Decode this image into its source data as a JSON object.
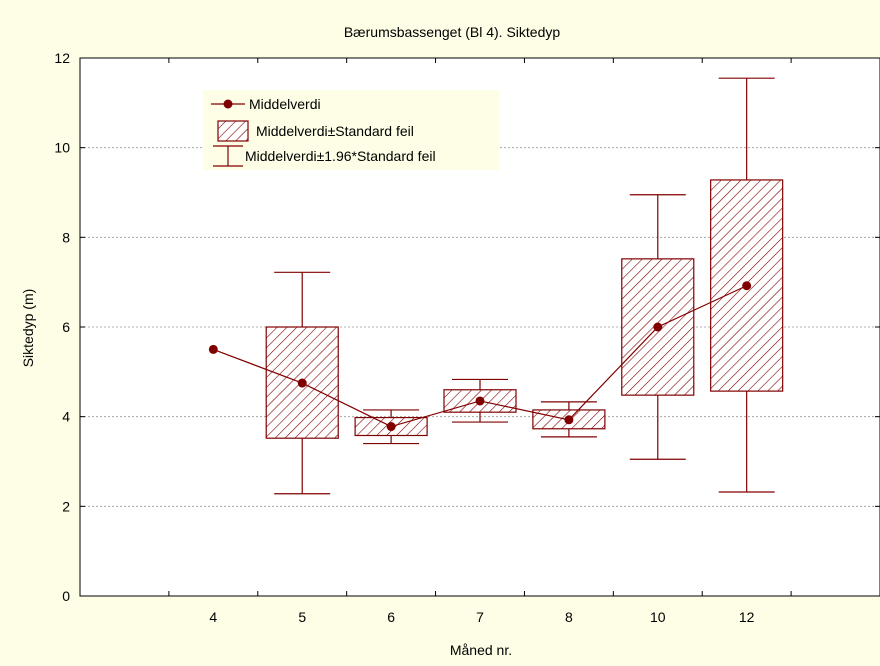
{
  "chart_data": {
    "type": "box",
    "title": "Bærumsbassenget (Bl 4). Siktedyp",
    "xlabel": "Måned nr.",
    "ylabel": "Siktedyp (m)",
    "ylim": [
      0,
      12
    ],
    "yticks": [
      0,
      2,
      4,
      6,
      8,
      10,
      12
    ],
    "grid": true,
    "legend_position": "top-left",
    "categories": [
      "4",
      "5",
      "6",
      "7",
      "8",
      "10",
      "12"
    ],
    "series": [
      {
        "name": "Middelverdi",
        "values": [
          5.5,
          4.75,
          3.78,
          4.35,
          3.93,
          6.0,
          6.92
        ]
      },
      {
        "name": "Middelverdi±Standard feil",
        "low": [
          null,
          3.52,
          3.58,
          4.1,
          3.73,
          4.48,
          4.57
        ],
        "high": [
          null,
          6.0,
          3.98,
          4.6,
          4.15,
          7.52,
          9.28
        ]
      },
      {
        "name": "Middelverdi±1.96*Standard feil",
        "low": [
          null,
          2.28,
          3.4,
          3.88,
          3.55,
          3.05,
          2.32
        ],
        "high": [
          null,
          7.22,
          4.15,
          4.83,
          4.33,
          8.95,
          11.55
        ]
      }
    ],
    "colors": {
      "series": "#800000",
      "background": "#fefee6",
      "plot_bg": "#ffffff",
      "grid": "#999999"
    }
  }
}
